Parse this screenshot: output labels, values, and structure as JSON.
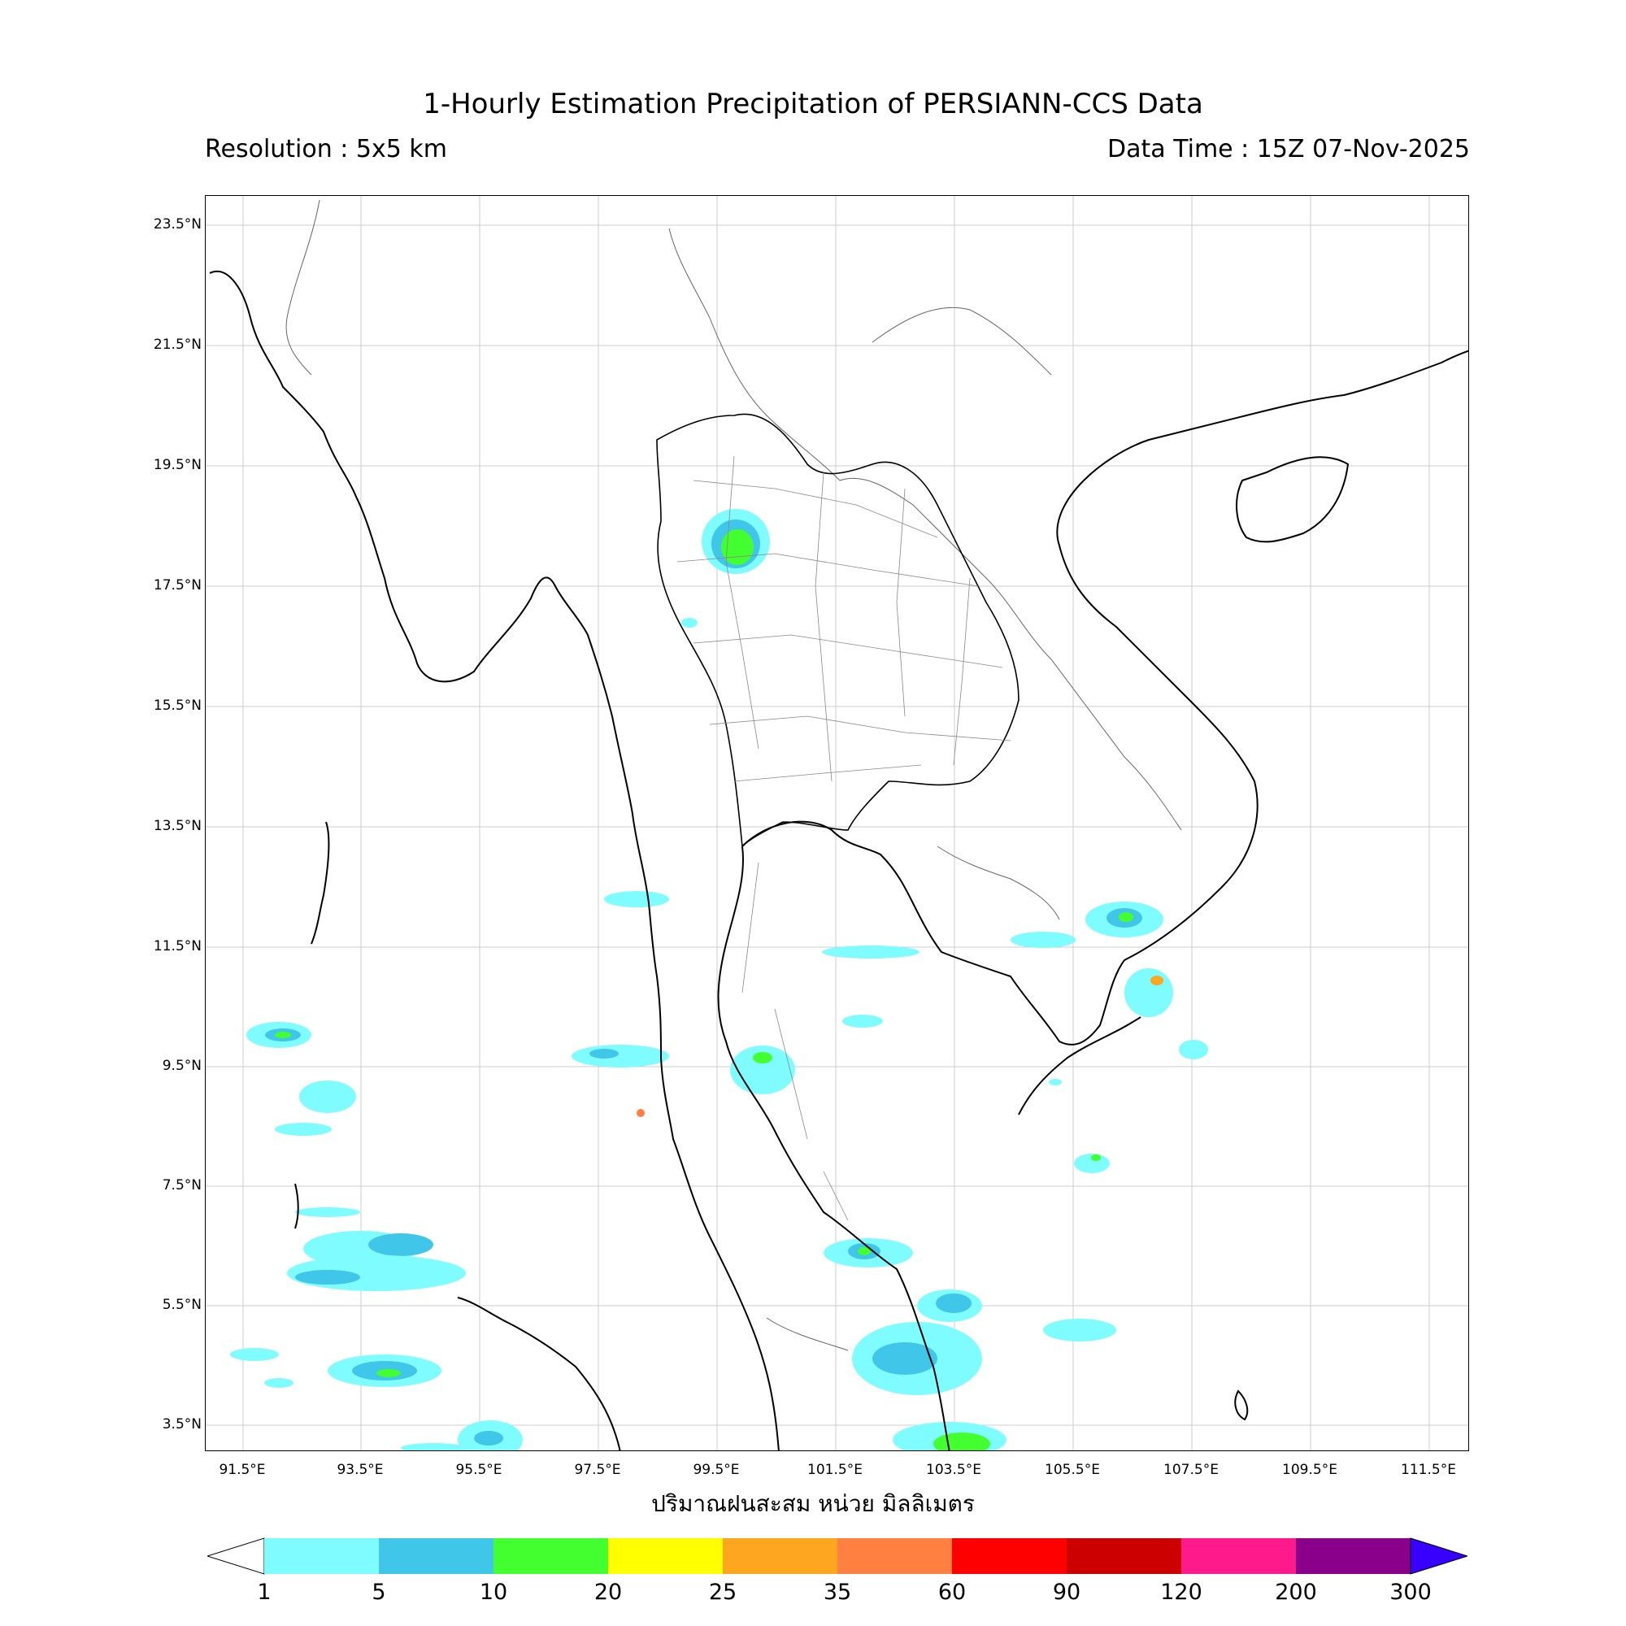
{
  "header": {
    "title": "1-Hourly Estimation Precipitation of PERSIANN-CCS Data",
    "resolution": "Resolution : 5x5 km",
    "data_time": "Data Time : 15Z 07-Nov-2025"
  },
  "map": {
    "lat_labels": [
      "23.5°N",
      "21.5°N",
      "19.5°N",
      "17.5°N",
      "15.5°N",
      "13.5°N",
      "11.5°N",
      "9.5°N",
      "7.5°N",
      "5.5°N",
      "3.5°N"
    ],
    "lon_labels": [
      "91.5°E",
      "93.5°E",
      "95.5°E",
      "97.5°E",
      "99.5°E",
      "101.5°E",
      "103.5°E",
      "105.5°E",
      "107.5°E",
      "109.5°E",
      "111.5°E"
    ],
    "land_line_color": "#000000",
    "grid_color": "#cccccc"
  },
  "x_axis_label": "ปริมาณฝนสะสม หน่วย มิลลิเมตร",
  "colorbar": {
    "ticks": [
      "1",
      "5",
      "10",
      "20",
      "25",
      "35",
      "60",
      "90",
      "120",
      "200",
      "300"
    ],
    "colors": [
      "#7ffcff",
      "#3fc6e8",
      "#44ff30",
      "#ffff00",
      "#ffa620",
      "#ff8040",
      "#ff0000",
      "#cc0000",
      "#ff1a8c",
      "#8b008b"
    ],
    "over_color": "#3700ff"
  }
}
